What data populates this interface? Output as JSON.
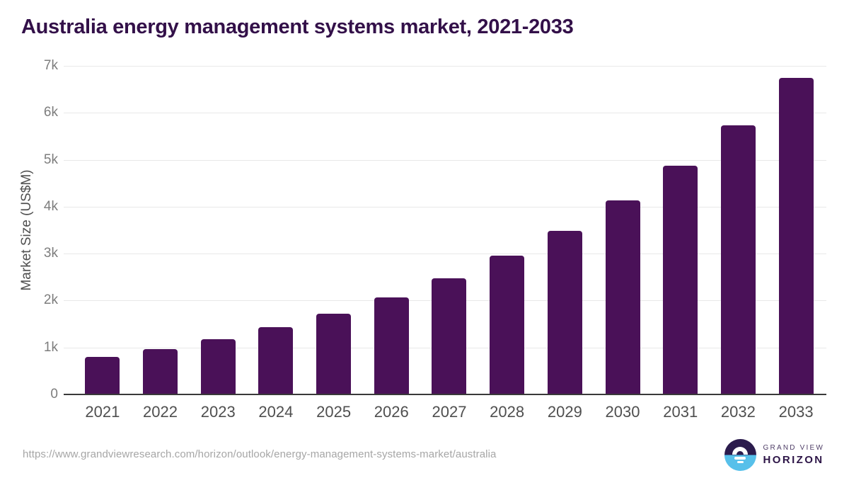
{
  "chart_data": {
    "type": "bar",
    "title": "Australia energy management systems market, 2021-2033",
    "xlabel": "",
    "ylabel": "Market Size (US$M)",
    "categories": [
      "2021",
      "2022",
      "2023",
      "2024",
      "2025",
      "2026",
      "2027",
      "2028",
      "2029",
      "2030",
      "2031",
      "2032",
      "2033"
    ],
    "values": [
      800,
      970,
      1180,
      1440,
      1720,
      2060,
      2470,
      2950,
      3490,
      4140,
      4880,
      5740,
      6740
    ],
    "unit": "US$M",
    "ylim": [
      0,
      7000
    ],
    "ytick_labels": [
      "0",
      "1k",
      "2k",
      "3k",
      "4k",
      "5k",
      "6k",
      "7k"
    ],
    "grid": true,
    "legend": "none",
    "bar_color": "#4a1158"
  },
  "colors": {
    "title": "#331049",
    "bar": "#4a1158",
    "gridline": "#e8e8e8",
    "axis_line": "#3a3a3a",
    "tick_text": "#7d7d7d",
    "label_text": "#4f4f4f",
    "url_text": "#a6a6a6",
    "logo_purple": "#2b1b4d",
    "logo_blue": "#57c0ea"
  },
  "footer": {
    "source_url": "https://www.grandviewresearch.com/horizon/outlook/energy-management-systems-market/australia",
    "logo": {
      "line1": "GRAND VIEW",
      "line2": "HORIZON",
      "icon": "sun-over-horizon-icon"
    }
  }
}
